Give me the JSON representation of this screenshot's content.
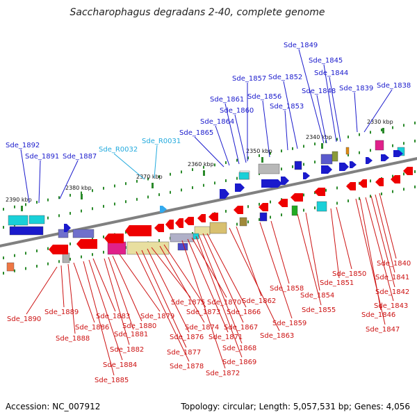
{
  "title": "Saccharophagus degradans 2-40, complete genome",
  "footer": {
    "accession": "Accession: NC_007912",
    "summary": "Topology: circular; Length: 5,057,531 bp; Genes: 4,056"
  },
  "colors": {
    "forward_label": "#1a1acc",
    "reverse_label": "#cc1111",
    "rna_label": "#22aadd",
    "backbone": "#808080"
  },
  "ticks": [
    "2390 kbp",
    "2380 kbp",
    "2370 kbp",
    "2360 kbp",
    "2350 kbp",
    "2340 kbp",
    "2330 kbp"
  ],
  "top_labels": [
    "Sde_1892",
    "Sde_1891",
    "Sde_1887",
    "Sde_R0032",
    "Sde_R0031",
    "Sde_1865",
    "Sde_1864",
    "Sde_1861",
    "Sde_1860",
    "Sde_1857",
    "Sde_1856",
    "Sde_1852",
    "Sde_1853",
    "Sde_1849",
    "Sde_1845",
    "Sde_1844",
    "Sde_1848",
    "Sde_1839",
    "Sde_1838"
  ],
  "bottom_labels": [
    "Sde_1890",
    "Sde_1889",
    "Sde_1888",
    "Sde_1886",
    "Sde_1885",
    "Sde_1884",
    "Sde_1883",
    "Sde_1882",
    "Sde_1881",
    "Sde_1880",
    "Sde_1879",
    "Sde_1878",
    "Sde_1877",
    "Sde_1876",
    "Sde_1875",
    "Sde_1874",
    "Sde_1873",
    "Sde_1872",
    "Sde_1871",
    "Sde_1870",
    "Sde_1869",
    "Sde_1868",
    "Sde_1867",
    "Sde_1866",
    "Sde_1863",
    "Sde_1862",
    "Sde_1859",
    "Sde_1858",
    "Sde_1855",
    "Sde_1854",
    "Sde_1851",
    "Sde_1850",
    "Sde_1847",
    "Sde_1846",
    "Sde_1843",
    "Sde_1842",
    "Sde_1841",
    "Sde_1840"
  ]
}
